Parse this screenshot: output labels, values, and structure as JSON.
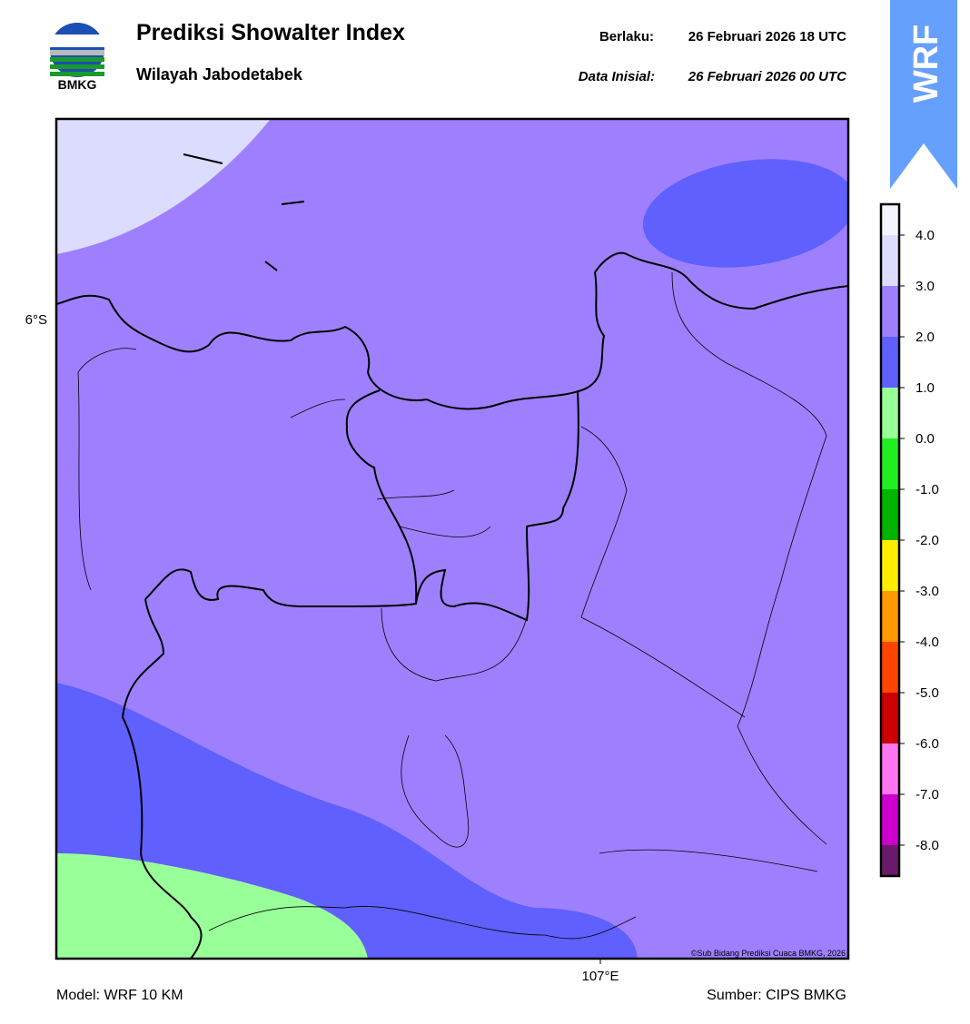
{
  "header": {
    "title": "Prediksi Showalter Index",
    "subtitle": "Wilayah Jabodetabek",
    "valid_label": "Berlaku:",
    "valid_time": "26 Februari 2026 18 UTC",
    "init_label": "Data Inisial:",
    "init_time": "26 Februari 2026 00 UTC",
    "logo_text": "BMKG",
    "badge": "WRF"
  },
  "map": {
    "lat_label": "6°S",
    "lon_label": "107°E",
    "copyright": "©Sub Bidang Prediksi Cuaca BMKG, 2026"
  },
  "colorbar": {
    "ticks": [
      "4.0",
      "3.0",
      "2.0",
      "1.0",
      "0.0",
      "-1.0",
      "-2.0",
      "-3.0",
      "-4.0",
      "-5.0",
      "-6.0",
      "-7.0",
      "-8.0"
    ],
    "colors": [
      "#f4f4ff",
      "#dcdcff",
      "#9e80ff",
      "#6060ff",
      "#99ff99",
      "#22ee22",
      "#00b400",
      "#ffee00",
      "#ff9900",
      "#ff4400",
      "#cc0000",
      "#ff77ee",
      "#cc00cc",
      "#6a1a6a"
    ]
  },
  "footer": {
    "model": "Model: WRF 10 KM",
    "source": "Sumber: CIPS BMKG"
  }
}
